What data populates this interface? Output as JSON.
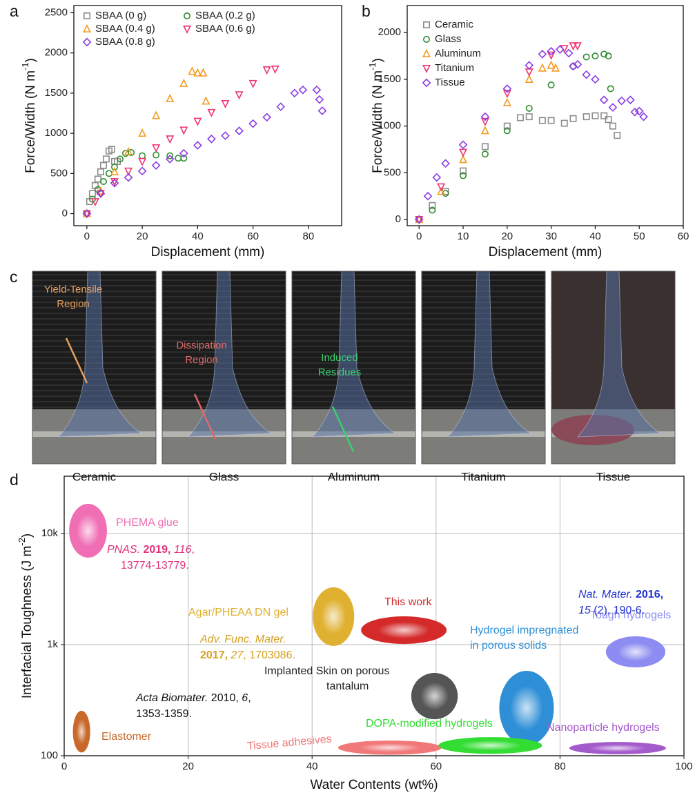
{
  "chart_data": [
    {
      "type": "scatter",
      "panel_label": "a",
      "xlabel": "Displacement (mm)",
      "ylabel": [
        "Force/Width (N m",
        "-1",
        ")"
      ],
      "xlim": [
        -4.7,
        92
      ],
      "ylim": [
        -150,
        2590
      ],
      "xticks": [
        0,
        20,
        40,
        60,
        80
      ],
      "yticks": [
        0,
        500,
        1000,
        1500,
        2000,
        2500
      ],
      "legend": "upper left",
      "legend_columns": 2,
      "series": [
        {
          "name": "SBAA (0 g)",
          "color": "#8c8c8c",
          "marker": "square",
          "x": [
            0,
            1,
            2,
            3,
            4,
            5,
            6,
            7,
            8,
            9,
            10,
            11
          ],
          "values": [
            0,
            150,
            250,
            350,
            430,
            520,
            600,
            680,
            780,
            800,
            650,
            650
          ]
        },
        {
          "name": "SBAA (0.2 g)",
          "color": "#2e8b2e",
          "marker": "circle",
          "x": [
            0,
            2,
            4,
            6,
            8,
            10,
            12,
            14,
            16,
            20,
            25,
            30,
            33,
            35
          ],
          "values": [
            0,
            180,
            300,
            400,
            500,
            580,
            680,
            750,
            760,
            720,
            730,
            720,
            690,
            690
          ]
        },
        {
          "name": "SBAA (0.4 g)",
          "color": "#f39a1e",
          "marker": "triangle-up",
          "x": [
            0,
            5,
            10,
            15,
            20,
            25,
            30,
            35,
            38,
            40,
            42,
            43
          ],
          "values": [
            0,
            280,
            520,
            770,
            1000,
            1220,
            1430,
            1620,
            1770,
            1750,
            1750,
            1400
          ]
        },
        {
          "name": "SBAA (0.6 g)",
          "color": "#f0346e",
          "marker": "triangle-down",
          "x": [
            0,
            3,
            5,
            10,
            15,
            20,
            25,
            30,
            35,
            40,
            45,
            50,
            55,
            60,
            65,
            68
          ],
          "values": [
            0,
            150,
            250,
            400,
            530,
            650,
            820,
            930,
            1040,
            1150,
            1260,
            1370,
            1480,
            1620,
            1790,
            1800
          ]
        },
        {
          "name": "SBAA (0.8 g)",
          "color": "#8a3ce6",
          "marker": "diamond",
          "x": [
            0,
            5,
            10,
            15,
            20,
            25,
            30,
            35,
            40,
            45,
            50,
            55,
            60,
            65,
            70,
            75,
            78,
            83,
            84,
            85
          ],
          "values": [
            0,
            250,
            380,
            450,
            530,
            600,
            680,
            750,
            850,
            930,
            970,
            1030,
            1120,
            1200,
            1330,
            1500,
            1540,
            1540,
            1420,
            1280
          ]
        }
      ]
    },
    {
      "type": "scatter",
      "panel_label": "b",
      "xlabel": "Displacement (mm)",
      "ylabel": [
        "Force/Width (N m",
        "-1",
        ")"
      ],
      "xlim": [
        -2.7,
        60
      ],
      "ylim": [
        -66,
        2290
      ],
      "xticks": [
        0,
        10,
        20,
        30,
        40,
        50,
        60
      ],
      "yticks": [
        0,
        500,
        1000,
        1500,
        2000
      ],
      "legend": "upper left",
      "legend_columns": 1,
      "series": [
        {
          "name": "Ceramic",
          "color": "#8c8c8c",
          "marker": "square",
          "x": [
            0,
            3,
            6,
            10,
            15,
            20,
            23,
            25,
            28,
            30,
            33,
            35,
            38,
            40,
            42,
            43,
            44,
            45
          ],
          "values": [
            0,
            150,
            300,
            520,
            780,
            1000,
            1090,
            1100,
            1060,
            1060,
            1030,
            1080,
            1100,
            1110,
            1110,
            1070,
            1000,
            900
          ]
        },
        {
          "name": "Glass",
          "color": "#2e8b2e",
          "marker": "circle",
          "x": [
            0,
            3,
            6,
            10,
            15,
            20,
            25,
            30,
            35,
            38,
            40,
            42,
            43,
            43.5
          ],
          "values": [
            0,
            100,
            280,
            470,
            700,
            950,
            1190,
            1440,
            1640,
            1740,
            1750,
            1770,
            1750,
            1400
          ]
        },
        {
          "name": "Aluminum",
          "color": "#f39a1e",
          "marker": "triangle-up",
          "x": [
            0,
            5,
            10,
            15,
            20,
            25,
            28,
            30,
            31
          ],
          "values": [
            0,
            300,
            640,
            950,
            1250,
            1500,
            1620,
            1650,
            1620
          ]
        },
        {
          "name": "Titanium",
          "color": "#f0346e",
          "marker": "triangle-down",
          "x": [
            0,
            5,
            10,
            15,
            20,
            25,
            30,
            33,
            35,
            36
          ],
          "values": [
            0,
            350,
            720,
            1050,
            1350,
            1580,
            1760,
            1830,
            1860,
            1860
          ]
        },
        {
          "name": "Tissue",
          "color": "#8a3ce6",
          "marker": "diamond",
          "x": [
            0,
            2,
            4,
            6,
            10,
            15,
            20,
            25,
            28,
            30,
            32,
            34,
            35,
            36,
            38,
            40,
            42,
            44,
            46,
            48,
            49,
            50,
            51
          ],
          "values": [
            0,
            250,
            450,
            600,
            800,
            1100,
            1400,
            1650,
            1770,
            1800,
            1820,
            1780,
            1640,
            1660,
            1550,
            1500,
            1280,
            1200,
            1270,
            1280,
            1150,
            1160,
            1100
          ]
        }
      ]
    },
    {
      "type": "ellipse",
      "panel_label": "d",
      "xlabel": "Water Contents (wt%)",
      "ylabel": [
        "Interfacial Toughness (J m",
        "-2",
        ")"
      ],
      "xlim": [
        0,
        100
      ],
      "ylim": [
        100,
        32800
      ],
      "yscale": "log",
      "grid": true,
      "xticks": [
        0,
        20,
        40,
        60,
        80,
        100
      ],
      "yticks": [
        100,
        {
          "value": 1000,
          "label": "1k"
        },
        {
          "value": 10000,
          "label": "10k"
        }
      ],
      "series": [
        {
          "label": [
            "PHEMA glue"
          ],
          "color": "#f06fb4",
          "x": [
            0.8,
            6.9
          ],
          "y": [
            6070,
            18500
          ]
        },
        {
          "label": [
            "Agar/PHEAA DN gel"
          ],
          "color": "#e0b030",
          "x": [
            40.1,
            46.8
          ],
          "y": [
            973,
            3280
          ]
        },
        {
          "label": [
            "This work"
          ],
          "color": "#d42a2a",
          "x": [
            47.9,
            61.7
          ],
          "y": [
            1014,
            1797
          ]
        },
        {
          "label": [
            "Implanted Skin on porous",
            "tantalum"
          ],
          "color": "#555555",
          "label_color": "#222222",
          "x": [
            56.0,
            63.5
          ],
          "y": [
            213,
            556
          ]
        },
        {
          "label": [
            "Hydrogel impregnated",
            "in porous solids"
          ],
          "color": "#2e8fd6",
          "x": [
            70.2,
            79.0
          ],
          "y": [
            124,
            581
          ]
        },
        {
          "label": [
            "Tough hydrogels"
          ],
          "color": "#8c8cf2",
          "x": [
            87.4,
            97.0
          ],
          "y": [
            624,
            1188
          ]
        },
        {
          "label": [
            "Elastomer"
          ],
          "color": "#c8682a",
          "x": [
            1.4,
            4.2
          ],
          "y": [
            107,
            254
          ]
        },
        {
          "label": [
            "Tissue adhesives"
          ],
          "color": "#f07878",
          "x": [
            44.2,
            60.9
          ],
          "y": [
            102,
            137
          ]
        },
        {
          "label": [
            "DOPA-modified hydrogels"
          ],
          "color": "#33dd33",
          "x": [
            60.4,
            77.1
          ],
          "y": [
            104,
            147
          ]
        },
        {
          "label": [
            "Nanoparticle hydrogels"
          ],
          "color": "#a35acb",
          "x": [
            81.5,
            97.1
          ],
          "y": [
            103,
            133
          ]
        }
      ],
      "citations": [
        {
          "color": "#e0307a",
          "lines": [
            [
              {
                "text": "PNAS.",
                "style": "italic"
              },
              {
                "text": " 2019,",
                "style": "bold"
              },
              {
                "text": " 116",
                "style": "italic"
              },
              {
                "text": ",",
                "style": "normal"
              }
            ],
            [
              {
                "text": "13774-13779.",
                "style": "normal"
              }
            ]
          ]
        },
        {
          "color": "#d4a020",
          "lines": [
            [
              {
                "text": "Adv. Func. Mater.",
                "style": "italic"
              }
            ],
            [
              {
                "text": "2017,",
                "style": "bold"
              },
              {
                "text": " 27",
                "style": "italic"
              },
              {
                "text": ", 1703086.",
                "style": "normal"
              }
            ]
          ]
        },
        {
          "color": "#2030d0",
          "lines": [
            [
              {
                "text": "Nat. Mater.",
                "style": "italic"
              },
              {
                "text": " 2016,",
                "style": "bold"
              }
            ],
            [
              {
                "text": "15",
                "style": "italic"
              },
              {
                "text": " (2), 190-6.",
                "style": "normal"
              }
            ]
          ]
        },
        {
          "color": "#111111",
          "lines": [
            [
              {
                "text": "Acta Biomater.",
                "style": "italic"
              },
              {
                "text": " 2010, ",
                "style": "normal"
              },
              {
                "text": "6",
                "style": "italic"
              },
              {
                "text": ",",
                "style": "normal"
              }
            ],
            [
              {
                "text": "1353-1359.",
                "style": "normal"
              }
            ]
          ]
        }
      ]
    }
  ],
  "photos": {
    "panel_label": "c",
    "items": [
      {
        "caption": "Ceramic",
        "annotation": [
          "Yield-Tensile",
          "Region"
        ],
        "annotation_color": "#e8a060"
      },
      {
        "caption": "Glass",
        "annotation": [
          "Dissipation",
          "Region"
        ],
        "annotation_color": "#e06868"
      },
      {
        "caption": "Aluminum",
        "annotation": [
          "Induced",
          "Residues"
        ],
        "annotation_color": "#3cd070"
      },
      {
        "caption": "Titanium"
      },
      {
        "caption": "Tissue"
      }
    ]
  }
}
